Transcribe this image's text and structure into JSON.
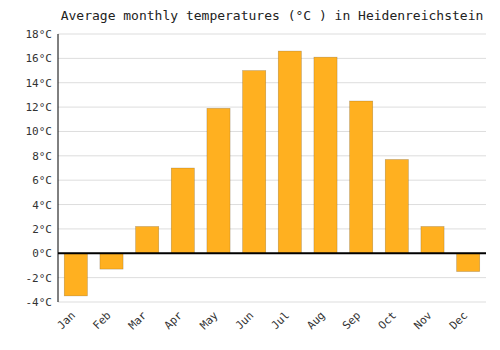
{
  "chart_data": {
    "type": "bar",
    "title": "Average monthly temperatures (°C ) in Heidenreichstein",
    "categories": [
      "Jan",
      "Feb",
      "Mar",
      "Apr",
      "May",
      "Jun",
      "Jul",
      "Aug",
      "Sep",
      "Oct",
      "Nov",
      "Dec"
    ],
    "values": [
      -3.5,
      -1.3,
      2.2,
      7.0,
      11.9,
      15.0,
      16.6,
      16.1,
      12.5,
      7.7,
      2.2,
      -1.5
    ],
    "color": "#FFB020",
    "ylim": [
      -4,
      18
    ],
    "yticks": [
      {
        "value": -4,
        "label": "-4°C"
      },
      {
        "value": -2,
        "label": "-2°C"
      },
      {
        "value": 0,
        "label": "0°C"
      },
      {
        "value": 2,
        "label": "2°C"
      },
      {
        "value": 4,
        "label": "4°C"
      },
      {
        "value": 6,
        "label": "6°C"
      },
      {
        "value": 8,
        "label": "8°C"
      },
      {
        "value": 10,
        "label": "10°C"
      },
      {
        "value": 12,
        "label": "12°C"
      },
      {
        "value": 14,
        "label": "14°C"
      },
      {
        "value": 16,
        "label": "16°C"
      },
      {
        "value": 18,
        "label": "18°C"
      }
    ],
    "grid": true
  }
}
